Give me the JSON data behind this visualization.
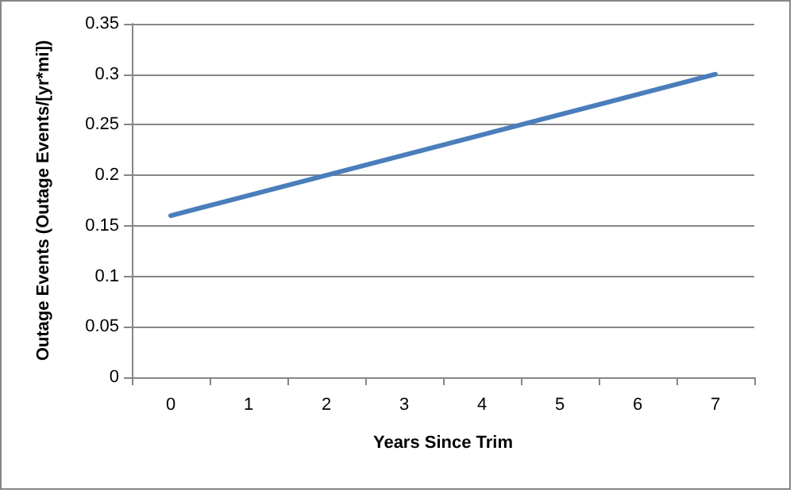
{
  "chart_data": {
    "type": "line",
    "categories": [
      "0",
      "1",
      "2",
      "3",
      "4",
      "5",
      "6",
      "7"
    ],
    "series": [
      {
        "color": "#4a7ebb",
        "values": [
          0.16,
          0.18,
          0.2,
          0.22,
          0.24,
          0.26,
          0.28,
          0.3
        ]
      }
    ],
    "xlabel": "Years Since Trim",
    "ylabel": "Outage Events (Outage Events/[yr*mi])",
    "ylim": [
      0,
      0.35
    ],
    "yticks": [
      0,
      0.05,
      0.1,
      0.15,
      0.2,
      0.25,
      0.3,
      0.35
    ],
    "grid": "y",
    "marker": "none",
    "line_style": "solid"
  }
}
